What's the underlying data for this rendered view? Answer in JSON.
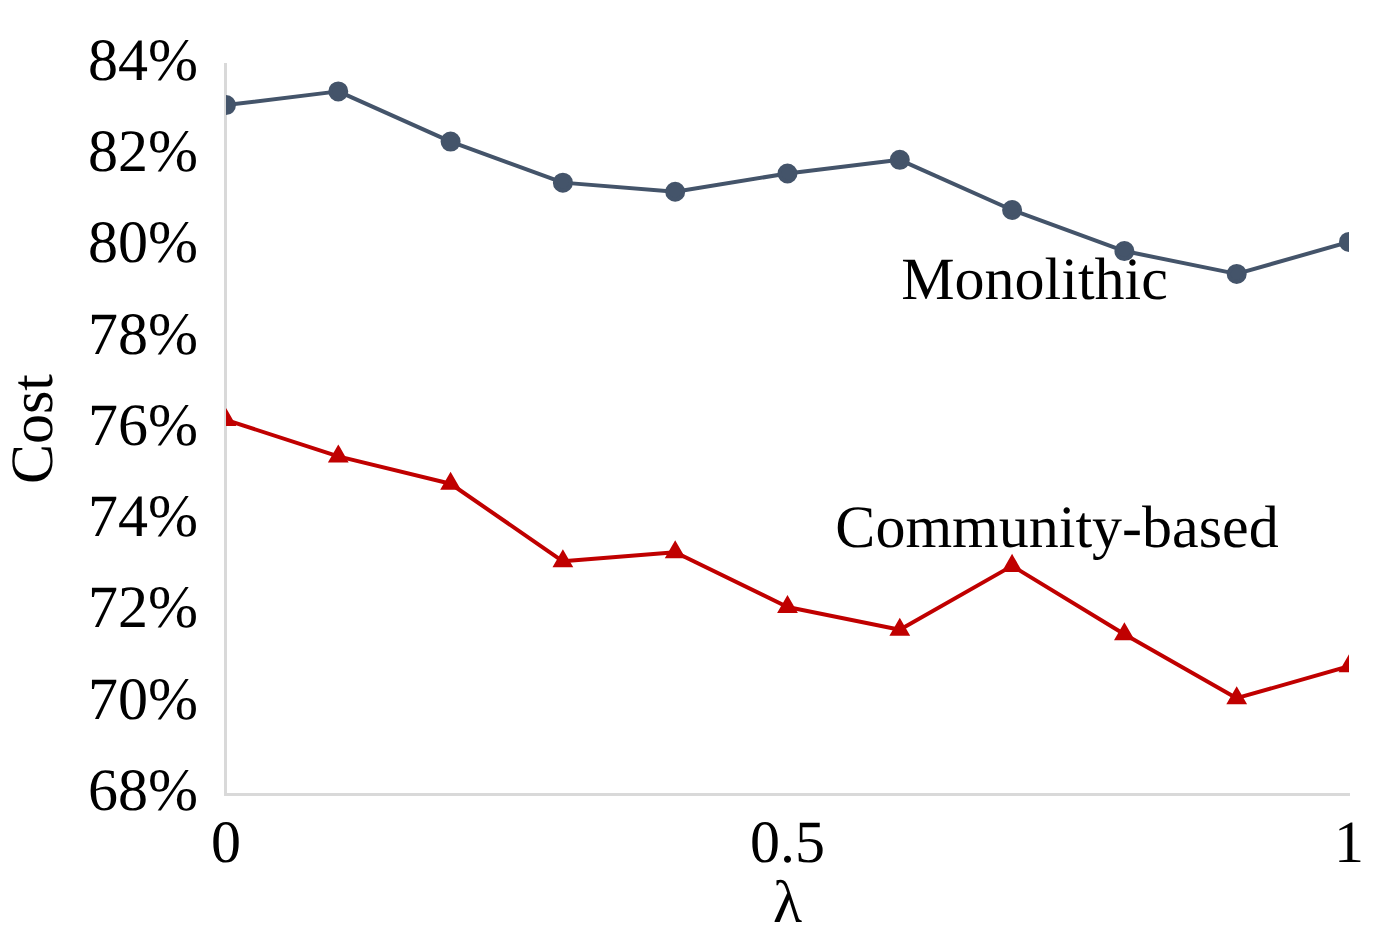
{
  "chart_data": {
    "type": "line",
    "xlabel": "λ",
    "ylabel": "Cost",
    "x": [
      0,
      0.1,
      0.2,
      0.3,
      0.4,
      0.5,
      0.6,
      0.7,
      0.8,
      0.9,
      1
    ],
    "xlim": [
      0,
      1
    ],
    "xticks": [
      0,
      0.5,
      1
    ],
    "ylim": [
      68,
      84
    ],
    "yticks": [
      {
        "value": 68,
        "label": "68%"
      },
      {
        "value": 70,
        "label": "70%"
      },
      {
        "value": 72,
        "label": "72%"
      },
      {
        "value": 74,
        "label": "74%"
      },
      {
        "value": 76,
        "label": "76%"
      },
      {
        "value": 78,
        "label": "78%"
      },
      {
        "value": 80,
        "label": "80%"
      },
      {
        "value": 82,
        "label": "82%"
      },
      {
        "value": 84,
        "label": "84%"
      }
    ],
    "series": [
      {
        "name": "Monolithic",
        "color": "#44546a",
        "marker": "circle",
        "values": [
          83.1,
          83.4,
          82.3,
          81.4,
          81.2,
          81.6,
          81.9,
          80.8,
          79.9,
          79.4,
          80.1
        ]
      },
      {
        "name": "Community-based",
        "color": "#c00000",
        "marker": "triangle",
        "values": [
          76.2,
          75.4,
          74.8,
          73.1,
          73.3,
          72.1,
          71.6,
          73.0,
          71.5,
          70.1,
          70.8
        ]
      }
    ],
    "grid": false,
    "legend": false
  }
}
